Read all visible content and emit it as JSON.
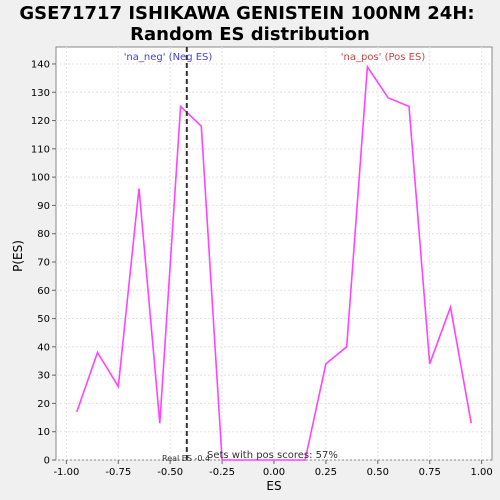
{
  "chart_data": {
    "type": "line",
    "title_line1": "GSE71717 ISHIKAWA GENISTEIN 100NM 24H:",
    "title_line2": "Random ES distribution",
    "xlabel": "ES",
    "ylabel": "P(ES)",
    "xlim": [
      -1.05,
      1.05
    ],
    "ylim": [
      0,
      146
    ],
    "x_ticks": [
      -1.0,
      -0.75,
      -0.5,
      -0.25,
      0.0,
      0.25,
      0.5,
      0.75,
      1.0
    ],
    "x_tick_labels": [
      "-1.00",
      "-0.75",
      "-0.50",
      "-0.25",
      "0.00",
      "0.25",
      "0.50",
      "0.75",
      "1.00"
    ],
    "y_ticks": [
      0,
      10,
      20,
      30,
      40,
      50,
      60,
      70,
      80,
      90,
      100,
      110,
      120,
      130,
      140
    ],
    "grid": true,
    "series": [
      {
        "color": "#ff44ff",
        "x": [
          -0.95,
          -0.85,
          -0.75,
          -0.65,
          -0.55,
          -0.45,
          -0.35,
          -0.25,
          -0.15,
          -0.05,
          0.05,
          0.15,
          0.25,
          0.35,
          0.45,
          0.55,
          0.65,
          0.75,
          0.85,
          0.95
        ],
        "y": [
          17,
          38,
          26,
          96,
          13,
          125,
          118,
          0,
          0,
          0,
          0,
          0,
          34,
          40,
          139,
          128,
          125,
          34,
          54,
          13
        ]
      }
    ],
    "real_es": -0.42,
    "real_es_label": "Real ES -0.4",
    "neg_label": "'na_neg' (Neg ES)",
    "pos_label": "'na_pos' (Pos ES)",
    "neg_color": "#4444cc",
    "pos_color": "#cc4444",
    "annotation": "Sets with pos scores: 57%"
  }
}
